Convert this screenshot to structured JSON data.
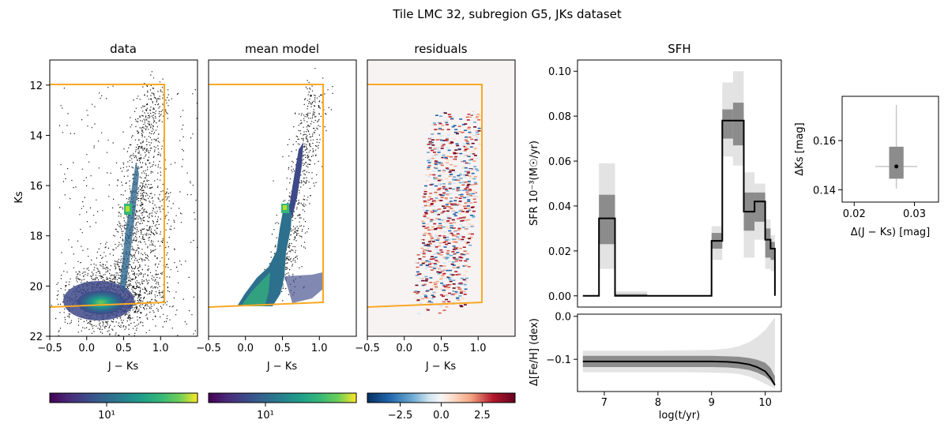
{
  "suptitle": "Tile LMC 32, subregion G5, JKs dataset",
  "chart_data": [
    {
      "type": "scatter",
      "panel": "data",
      "title": "data",
      "xlabel": "J − Ks",
      "ylabel": "Ks",
      "xlim": [
        -0.5,
        1.5
      ],
      "ylim": [
        22,
        11
      ],
      "x_ticks": [
        "−0.5",
        "0.0",
        "0.5",
        "1.0"
      ],
      "y_ticks": [
        "12",
        "14",
        "16",
        "18",
        "20",
        "22"
      ],
      "selection_box": {
        "color": "#f9a825",
        "x": [
          -0.5,
          1.05,
          1.05,
          -0.5
        ],
        "y": [
          12.0,
          12.0,
          20.7,
          20.85
        ]
      },
      "colorbar": {
        "colormap": "viridis",
        "scale": "log",
        "tick_labels": [
          "10¹"
        ]
      }
    },
    {
      "type": "heatmap",
      "panel": "mean model",
      "title": "mean model",
      "xlabel": "J − Ks",
      "xlim": [
        -0.5,
        1.5
      ],
      "ylim": [
        22,
        11
      ],
      "x_ticks": [
        "−0.5",
        "0.0",
        "0.5",
        "1.0"
      ],
      "colorbar": {
        "colormap": "viridis",
        "scale": "log",
        "tick_labels": [
          "10¹"
        ]
      }
    },
    {
      "type": "heatmap",
      "panel": "residuals",
      "title": "residuals",
      "xlabel": "J − Ks",
      "xlim": [
        -0.5,
        1.5
      ],
      "ylim": [
        22,
        11
      ],
      "x_ticks": [
        "−0.5",
        "0.0",
        "0.5",
        "1.0"
      ],
      "colorbar": {
        "colormap": "RdBu_r",
        "range": [
          -4.5,
          4.5
        ],
        "tick_labels": [
          "−2.5",
          "0.0",
          "2.5"
        ]
      }
    },
    {
      "type": "line",
      "panel": "SFH",
      "title": "SFH",
      "ylabel": "SFR 10⁻³(M☉/yr)",
      "xlim": [
        6.5,
        10.3
      ],
      "ylim": [
        -0.005,
        0.105
      ],
      "y_ticks": [
        "0.00",
        "0.02",
        "0.04",
        "0.06",
        "0.08",
        "0.10"
      ],
      "bins": [
        {
          "x0": 6.6,
          "x1": 6.9,
          "median": 0.0,
          "q16": 0.0,
          "q84": 0.0,
          "p2": 0.0,
          "p98": 0.0
        },
        {
          "x0": 6.9,
          "x1": 7.2,
          "median": 0.0345,
          "q16": 0.023,
          "q84": 0.045,
          "p2": 0.012,
          "p98": 0.059
        },
        {
          "x0": 7.2,
          "x1": 7.8,
          "median": 0.0,
          "q16": 0.0,
          "q84": 0.0008,
          "p2": 0.0,
          "p98": 0.002
        },
        {
          "x0": 7.8,
          "x1": 9.0,
          "median": 0.0,
          "q16": 0.0,
          "q84": 0.0,
          "p2": 0.0,
          "p98": 0.0
        },
        {
          "x0": 9.0,
          "x1": 9.2,
          "median": 0.0245,
          "q16": 0.021,
          "q84": 0.028,
          "p2": 0.016,
          "p98": 0.031
        },
        {
          "x0": 9.2,
          "x1": 9.4,
          "median": 0.078,
          "q16": 0.07,
          "q84": 0.083,
          "p2": 0.062,
          "p98": 0.095
        },
        {
          "x0": 9.4,
          "x1": 9.6,
          "median": 0.078,
          "q16": 0.067,
          "q84": 0.086,
          "p2": 0.058,
          "p98": 0.1
        },
        {
          "x0": 9.6,
          "x1": 9.8,
          "median": 0.0375,
          "q16": 0.029,
          "q84": 0.046,
          "p2": 0.017,
          "p98": 0.055
        },
        {
          "x0": 9.8,
          "x1": 10.0,
          "median": 0.042,
          "q16": 0.033,
          "q84": 0.046,
          "p2": 0.025,
          "p98": 0.05
        },
        {
          "x0": 10.0,
          "x1": 10.1,
          "median": 0.025,
          "q16": 0.017,
          "q84": 0.03,
          "p2": 0.012,
          "p98": 0.034
        },
        {
          "x0": 10.1,
          "x1": 10.18,
          "median": 0.021,
          "q16": 0.016,
          "q84": 0.024,
          "p2": 0.011,
          "p98": 0.027
        }
      ]
    },
    {
      "type": "line",
      "panel": "age-metallicity",
      "xlabel": "log(t/yr)",
      "ylabel": "Δ[Fe/H] (dex)",
      "xlim": [
        6.5,
        10.3
      ],
      "ylim": [
        -0.175,
        0.005
      ],
      "x_ticks": [
        "7",
        "8",
        "9",
        "10"
      ],
      "y_ticks": [
        "0.0",
        "−0.1"
      ],
      "x": [
        6.6,
        7.0,
        7.5,
        8.0,
        8.5,
        9.0,
        9.3,
        9.5,
        9.7,
        9.85,
        10.0,
        10.1,
        10.18
      ],
      "median": [
        -0.105,
        -0.105,
        -0.105,
        -0.105,
        -0.105,
        -0.105,
        -0.106,
        -0.108,
        -0.112,
        -0.118,
        -0.128,
        -0.143,
        -0.16
      ],
      "inner_band_low": [
        -0.118,
        -0.118,
        -0.118,
        -0.118,
        -0.118,
        -0.118,
        -0.119,
        -0.121,
        -0.125,
        -0.131,
        -0.14,
        -0.15,
        -0.163
      ],
      "inner_band_high": [
        -0.092,
        -0.092,
        -0.092,
        -0.092,
        -0.092,
        -0.092,
        -0.093,
        -0.094,
        -0.097,
        -0.101,
        -0.108,
        -0.12,
        -0.14
      ],
      "outer_band_low": [
        -0.13,
        -0.13,
        -0.13,
        -0.13,
        -0.13,
        -0.131,
        -0.132,
        -0.134,
        -0.14,
        -0.148,
        -0.157,
        -0.163,
        -0.168
      ],
      "outer_band_high": [
        -0.08,
        -0.08,
        -0.08,
        -0.08,
        -0.079,
        -0.078,
        -0.075,
        -0.07,
        -0.06,
        -0.048,
        -0.032,
        -0.016,
        -0.002
      ]
    },
    {
      "type": "scatter",
      "panel": "offsets",
      "xlabel": "Δ(J − Ks) [mag]",
      "ylabel": "ΔKs [mag]",
      "xlim": [
        0.018,
        0.034
      ],
      "ylim": [
        0.135,
        0.178
      ],
      "x_ticks": [
        "0.02",
        "0.03"
      ],
      "y_ticks": [
        "0.14",
        "0.16"
      ],
      "point": {
        "x": 0.027,
        "y": 0.1495
      },
      "box": {
        "x": [
          0.0258,
          0.0282
        ],
        "y": [
          0.1445,
          0.1575
        ]
      },
      "whiskers": {
        "x": [
          0.0235,
          0.0305
        ],
        "y": [
          0.1405,
          0.1745
        ]
      }
    }
  ]
}
